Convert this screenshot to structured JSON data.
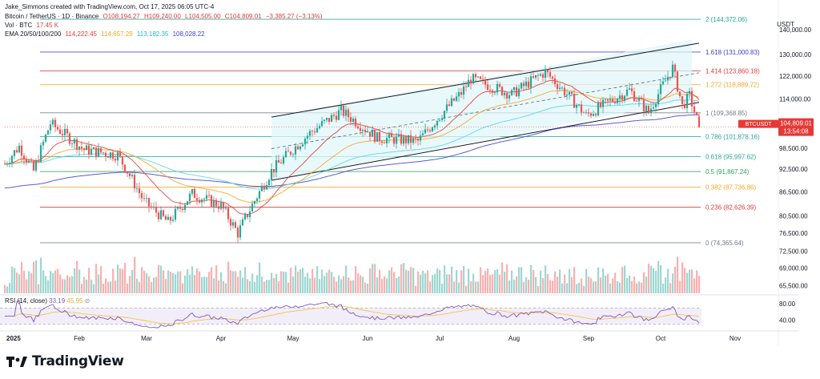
{
  "header": {
    "credit": "Jake_Simmons created with TradingView.com, Oct 17, 2025 06:05 UTC-4",
    "symbol": "Bitcoin / TetherUS · 1D · Binance",
    "open": "O108,194.27",
    "high": "H109,240.00",
    "low": "L104,505.00",
    "close": "C104,809.01",
    "change": "−3,385.27 (−3.13%)",
    "vol_label": "Vol · BTC",
    "vol_value": "17.45 K",
    "ema_label": "EMA 20/50/100/200",
    "ema20": "114,222.45",
    "ema50": "114,657.29",
    "ema100": "113,182.35",
    "ema200": "108,028.22"
  },
  "colors": {
    "up": "#26a69a",
    "down": "#ef5350",
    "ema20": "#e53935",
    "ema50": "#f5a623",
    "ema100": "#5ad4e6",
    "ema200": "#3c3fd0",
    "channel_fill": "#e0f7fa",
    "rsi_line": "#7e57c2",
    "rsi_ma": "#f5c542"
  },
  "price_axis": {
    "currency": "USDT",
    "ticks": [
      "140,000.00",
      "130,000.00",
      "122,000.00",
      "114,000.00",
      "98,500.00",
      "92,500.00",
      "86,500.00",
      "80,500.00",
      "76,500.00",
      "72,500.00",
      "69,000.00",
      "65,500.00"
    ],
    "last_price_label": "BTCUSDT",
    "last_price": "104,809.01",
    "countdown": "13:54:08"
  },
  "time_axis": [
    "2025",
    "Feb",
    "Mar",
    "Apr",
    "May",
    "Jun",
    "Jul",
    "Aug",
    "Sep",
    "Oct",
    "Nov"
  ],
  "fib_levels": [
    {
      "label": "2 (144,372.06)",
      "price": 144372.06,
      "color": "#26a69a"
    },
    {
      "label": "1.618 (131,000.83)",
      "price": 131000.83,
      "color": "#3c3fd0"
    },
    {
      "label": "1.414 (123,860.18)",
      "price": 123860.18,
      "color": "#e53935"
    },
    {
      "label": "1.272 (118,889.72)",
      "price": 118889.72,
      "color": "#f5a623"
    },
    {
      "label": "1 (109,368.85)",
      "price": 109368.85,
      "color": "#707a8a"
    },
    {
      "label": "0.786 (101,878.16)",
      "price": 101878.16,
      "color": "#26a69a"
    },
    {
      "label": "0.618 (95,997.62)",
      "price": 95997.62,
      "color": "#26a69a"
    },
    {
      "label": "0.5 (91,867.24)",
      "price": 91867.24,
      "color": "#2e9e5a"
    },
    {
      "label": "0.382 (87,736.86)",
      "price": 87736.86,
      "color": "#f5a623"
    },
    {
      "label": "0.236 (82,626.39)",
      "price": 82626.39,
      "color": "#e53935"
    },
    {
      "label": "0 (74,365.64)",
      "price": 74365.64,
      "color": "#707a8a"
    }
  ],
  "rsi": {
    "label": "RSI (14, close)",
    "value": "33.19",
    "ma_value": "45.95",
    "ticks": [
      "80.00",
      "40.00"
    ]
  },
  "logo": {
    "text": "TradingView"
  },
  "chart_data": {
    "type": "candlestick",
    "title": "Bitcoin / TetherUS · 1D · Binance",
    "ylabel": "USDT",
    "y_scale": "log",
    "ylim": [
      64000,
      150000
    ],
    "x_range": [
      "2025-01-01",
      "2025-11-25"
    ],
    "monthly_path": [
      {
        "date": "2025-01-01",
        "price": 94000
      },
      {
        "date": "2025-01-07",
        "price": 99000
      },
      {
        "date": "2025-01-13",
        "price": 92000
      },
      {
        "date": "2025-01-20",
        "price": 106000
      },
      {
        "date": "2025-01-27",
        "price": 102000
      },
      {
        "date": "2025-02-03",
        "price": 98000
      },
      {
        "date": "2025-02-17",
        "price": 96500
      },
      {
        "date": "2025-02-28",
        "price": 84000
      },
      {
        "date": "2025-03-10",
        "price": 79000
      },
      {
        "date": "2025-03-20",
        "price": 86000
      },
      {
        "date": "2025-04-01",
        "price": 83000
      },
      {
        "date": "2025-04-08",
        "price": 76500
      },
      {
        "date": "2025-04-22",
        "price": 92000
      },
      {
        "date": "2025-05-08",
        "price": 103000
      },
      {
        "date": "2025-05-21",
        "price": 110000
      },
      {
        "date": "2025-06-05",
        "price": 101500
      },
      {
        "date": "2025-06-22",
        "price": 100500
      },
      {
        "date": "2025-07-10",
        "price": 116000
      },
      {
        "date": "2025-07-14",
        "price": 121000
      },
      {
        "date": "2025-07-31",
        "price": 115500
      },
      {
        "date": "2025-08-14",
        "price": 123500
      },
      {
        "date": "2025-08-31",
        "price": 108500
      },
      {
        "date": "2025-09-18",
        "price": 117000
      },
      {
        "date": "2025-09-26",
        "price": 109500
      },
      {
        "date": "2025-10-06",
        "price": 125000
      },
      {
        "date": "2025-10-10",
        "price": 111500
      },
      {
        "date": "2025-10-13",
        "price": 115000
      },
      {
        "date": "2025-10-17",
        "price": 104809
      }
    ],
    "last": {
      "open": 108194.27,
      "high": 109240.0,
      "low": 104505.0,
      "close": 104809.01,
      "change": -3385.27,
      "change_pct": -3.13
    },
    "ema": {
      "ema20": 114222.45,
      "ema50": 114657.29,
      "ema100": 113182.35,
      "ema200": 108028.22
    },
    "rsi_last": 33.19,
    "rsi_ylim": [
      20,
      90
    ]
  }
}
